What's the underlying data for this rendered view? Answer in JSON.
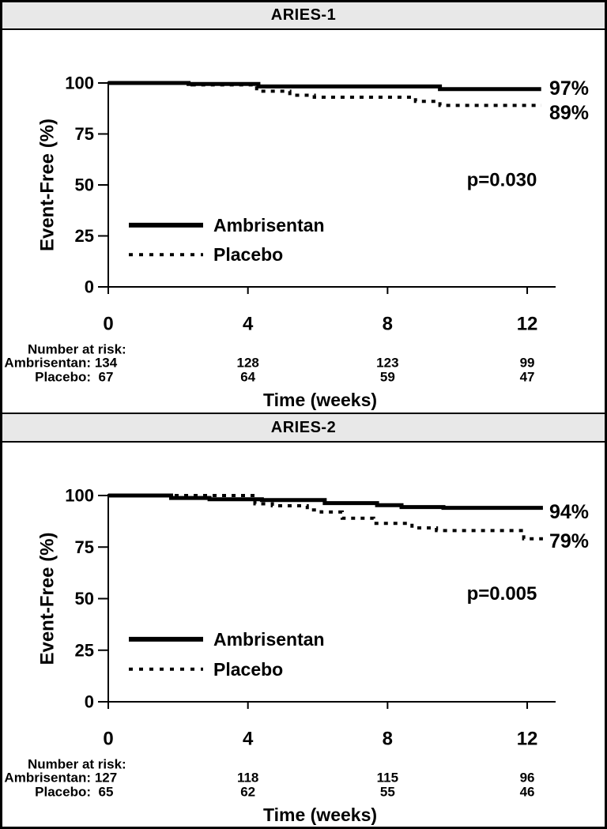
{
  "colors": {
    "line": "#000000",
    "background": "#ffffff",
    "title_bar_background": "#e8e8e8",
    "border": "#000000"
  },
  "chart_data": [
    {
      "type": "line",
      "subtype": "kaplan-meier-step",
      "title": "ARIES-1",
      "xlabel": "Time (weeks)",
      "ylabel": "Event-Free (%)",
      "xlim": [
        0,
        12.8
      ],
      "ylim": [
        0,
        100
      ],
      "xticks": [
        "0",
        "4",
        "8",
        "12"
      ],
      "yticks": [
        "0",
        "25",
        "50",
        "75",
        "100"
      ],
      "grid": false,
      "legend_position": "lower-left-inside",
      "annotation": "p=0.030",
      "series": [
        {
          "name": "Ambrisentan",
          "style": "solid",
          "end_label": "97%",
          "end_label_pct": 97.3,
          "steps": [
            [
              0,
              100
            ],
            [
              2.3,
              99.5
            ],
            [
              4.3,
              98.3
            ],
            [
              9.5,
              97
            ],
            [
              12.4,
              97
            ]
          ]
        },
        {
          "name": "Placebo",
          "style": "dashed",
          "end_label": "89%",
          "end_label_pct": 85.3,
          "steps": [
            [
              0,
              100
            ],
            [
              2.4,
              99.1
            ],
            [
              4.25,
              96
            ],
            [
              5.2,
              94
            ],
            [
              5.9,
              93
            ],
            [
              8.8,
              91
            ],
            [
              9.5,
              89
            ],
            [
              12.4,
              89
            ]
          ]
        }
      ],
      "number_at_risk": {
        "heading": "Number at risk:",
        "times": [
          0,
          4,
          8,
          12
        ],
        "rows": [
          {
            "label": "Ambrisentan:",
            "values": [
              "134",
              "128",
              "123",
              "99"
            ]
          },
          {
            "label": "Placebo:",
            "values": [
              "67",
              "64",
              "59",
              "47"
            ]
          }
        ]
      }
    },
    {
      "type": "line",
      "subtype": "kaplan-meier-step",
      "title": "ARIES-2",
      "xlabel": "Time (weeks)",
      "ylabel": "Event-Free (%)",
      "xlim": [
        0,
        12.8
      ],
      "ylim": [
        0,
        100
      ],
      "xticks": [
        "0",
        "4",
        "8",
        "12"
      ],
      "yticks": [
        "0",
        "25",
        "50",
        "75",
        "100"
      ],
      "grid": false,
      "legend_position": "lower-left-inside",
      "annotation": "p=0.005",
      "series": [
        {
          "name": "Ambrisentan",
          "style": "solid",
          "end_label": "94%",
          "end_label_pct": 92.0,
          "steps": [
            [
              0,
              100
            ],
            [
              1.8,
              98.8
            ],
            [
              2.9,
              98.2
            ],
            [
              4.4,
              97.8
            ],
            [
              6.2,
              96.3
            ],
            [
              7.7,
              95.3
            ],
            [
              8.4,
              94.4
            ],
            [
              9.6,
              94
            ],
            [
              12.45,
              94
            ]
          ]
        },
        {
          "name": "Placebo",
          "style": "dashed",
          "end_label": "79%",
          "end_label_pct": 77.8,
          "steps": [
            [
              0,
              100
            ],
            [
              4.2,
              96
            ],
            [
              4.7,
              95
            ],
            [
              5.7,
              93
            ],
            [
              6.1,
              92
            ],
            [
              6.7,
              89
            ],
            [
              7.6,
              86.5
            ],
            [
              8.7,
              84.3
            ],
            [
              9.4,
              83
            ],
            [
              11.9,
              79
            ],
            [
              12.45,
              79
            ]
          ]
        }
      ],
      "number_at_risk": {
        "heading": "Number at risk:",
        "times": [
          0,
          4,
          8,
          12
        ],
        "rows": [
          {
            "label": "Ambrisentan:",
            "values": [
              "127",
              "118",
              "115",
              "96"
            ]
          },
          {
            "label": "Placebo:",
            "values": [
              "65",
              "62",
              "55",
              "46"
            ]
          }
        ]
      }
    }
  ]
}
